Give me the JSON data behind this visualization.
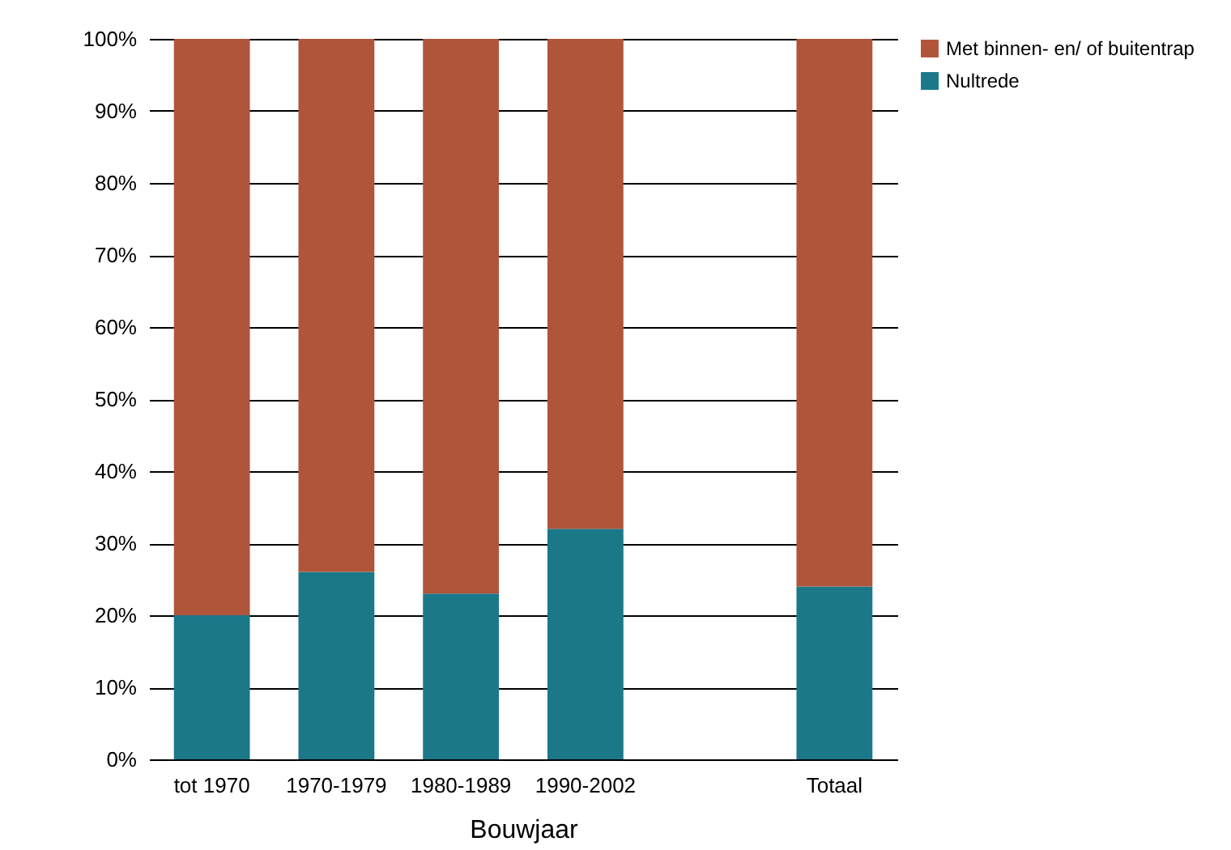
{
  "chart_data": {
    "type": "bar",
    "stacked": true,
    "xlabel": "Bouwjaar",
    "categories": [
      "tot 1970",
      "1970-1979",
      "1980-1989",
      "1990-2002",
      null,
      "Totaal"
    ],
    "series": [
      {
        "name": "Nultrede",
        "color": "#1a7889",
        "values": [
          20,
          26,
          23,
          32,
          null,
          24
        ]
      },
      {
        "name": "Met binnen- en/ of buitentrap",
        "color": "#b0543a",
        "values": [
          80,
          74,
          77,
          68,
          null,
          76
        ]
      }
    ],
    "ylim": [
      0,
      100
    ],
    "yticks": [
      {
        "value": 0,
        "label": "0%"
      },
      {
        "value": 10,
        "label": "10%"
      },
      {
        "value": 20,
        "label": "20%"
      },
      {
        "value": 30,
        "label": "30%"
      },
      {
        "value": 40,
        "label": "40%"
      },
      {
        "value": 50,
        "label": "50%"
      },
      {
        "value": 60,
        "label": "60%"
      },
      {
        "value": 70,
        "label": "70%"
      },
      {
        "value": 80,
        "label": "80%"
      },
      {
        "value": 90,
        "label": "90%"
      },
      {
        "value": 100,
        "label": "100%"
      }
    ],
    "grid": "y",
    "legend": "right"
  }
}
